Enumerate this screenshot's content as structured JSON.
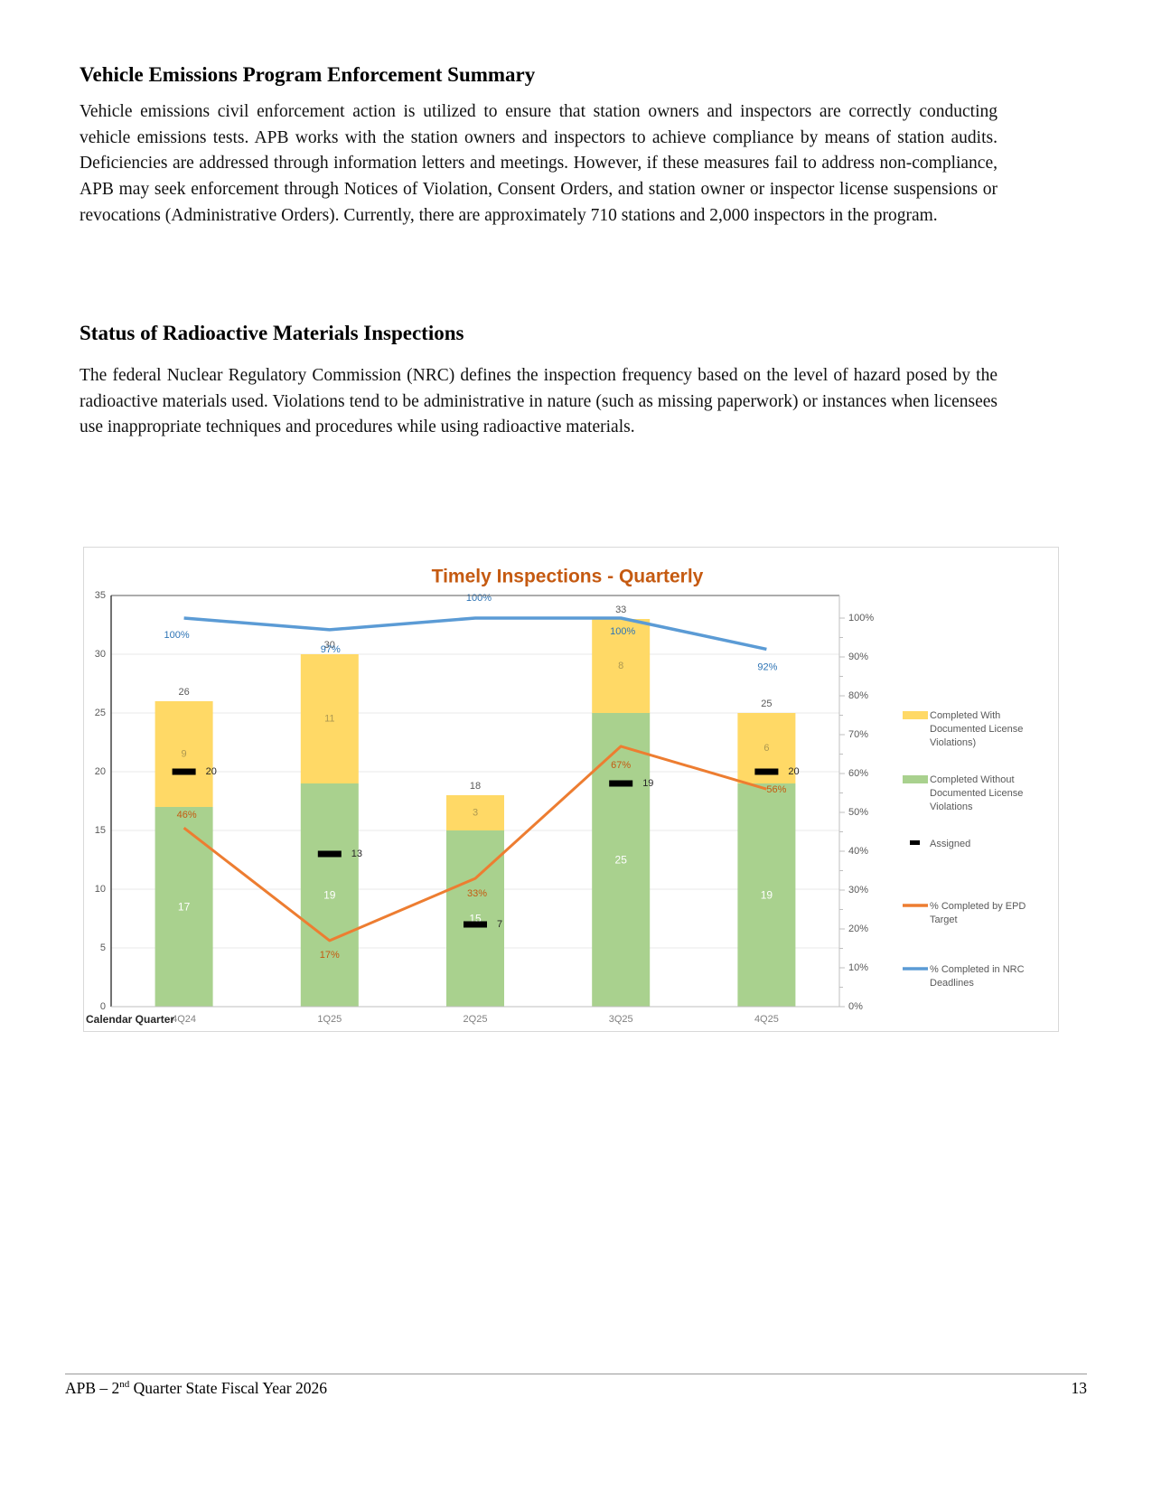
{
  "page": {
    "section1": {
      "heading": "Vehicle Emissions Program Enforcement Summary",
      "body": "Vehicle emissions civil enforcement action is utilized to ensure that station owners and inspectors are correctly conducting vehicle emissions tests. APB works with the station owners and inspectors to achieve compliance by means of station audits. Deficiencies are addressed through information letters and meetings.  However, if these measures fail to address non-compliance, APB may seek enforcement through Notices of Violation, Consent Orders, and station owner or inspector license suspensions or revocations (Administrative Orders).  Currently, there are approximately 710 stations and 2,000 inspectors in the program."
    },
    "section2": {
      "heading": "Status of Radioactive Materials Inspections",
      "body": "The federal Nuclear Regulatory Commission (NRC) defines the inspection frequency based on the level of hazard posed by the radioactive materials used. Violations tend to be administrative in nature (such as missing paperwork) or instances when licensees use inappropriate techniques and procedures while using radioactive materials."
    },
    "footer": {
      "left_prefix": "APB – 2",
      "left_superscript": "nd",
      "left_suffix": " Quarter State Fiscal Year 2026",
      "page_number": "13"
    }
  },
  "chart_data": {
    "type": "combo",
    "title": "Timely Inspections - Quarterly",
    "title_color": "#C55A11",
    "x_axis_title": "Calendar Quarter",
    "categories": [
      "4Q24",
      "1Q25",
      "2Q25",
      "3Q25",
      "4Q25"
    ],
    "left_axis": {
      "min": 0,
      "max": 35,
      "step": 5
    },
    "right_axis": {
      "min": 0,
      "max": 100,
      "step": 10,
      "unit": "%"
    },
    "series": {
      "with_violations": {
        "name": "Completed With Documented License Violations)",
        "type": "bar",
        "stacked": true,
        "color": "#FFD966",
        "values": [
          9,
          11,
          3,
          8,
          6
        ]
      },
      "without_violations": {
        "name": "Completed Without Documented License Violations",
        "type": "bar",
        "stacked": true,
        "color": "#A9D18E",
        "values": [
          17,
          19,
          15,
          25,
          19
        ]
      },
      "assigned": {
        "name": "Assigned",
        "type": "dash-marker",
        "color": "#000000",
        "values": [
          20,
          13,
          7,
          19,
          20
        ]
      },
      "epd": {
        "name": "% Completed by EPD Target",
        "type": "line",
        "axis": "right",
        "color": "#ED7D31",
        "values": [
          46,
          17,
          33,
          67,
          56
        ],
        "labels": [
          "46%",
          "17%",
          "33%",
          "67%",
          "56%"
        ]
      },
      "nrc": {
        "name": "% Completed in NRC Deadlines",
        "type": "line",
        "axis": "right",
        "color": "#5B9BD5",
        "values": [
          100,
          97,
          100,
          100,
          92
        ],
        "labels": [
          "100%",
          "97%",
          "100%",
          "100%",
          "92%"
        ]
      }
    },
    "totals": [
      26,
      30,
      18,
      33,
      25
    ],
    "legend": [
      {
        "swatch": "bar",
        "color": "#FFD966",
        "lines": [
          "Completed With",
          "Documented License",
          "Violations)"
        ]
      },
      {
        "swatch": "bar",
        "color": "#A9D18E",
        "lines": [
          "Completed Without",
          "Documented License",
          "Violations"
        ]
      },
      {
        "swatch": "dash",
        "color": "#000000",
        "lines": [
          "Assigned"
        ]
      },
      {
        "swatch": "line",
        "color": "#ED7D31",
        "lines": [
          "% Completed by EPD",
          "Target"
        ]
      },
      {
        "swatch": "line",
        "color": "#5B9BD5",
        "lines": [
          "% Completed in NRC",
          "Deadlines"
        ]
      }
    ],
    "label_colors": {
      "totals": "#595959",
      "with_violations": "#AD9850",
      "without_violations": "#ffffff",
      "assigned": "#262626",
      "epd": "#C55A11",
      "nrc": "#2E74B5",
      "axis": "#595959",
      "x_axis_title": "#262626"
    }
  }
}
